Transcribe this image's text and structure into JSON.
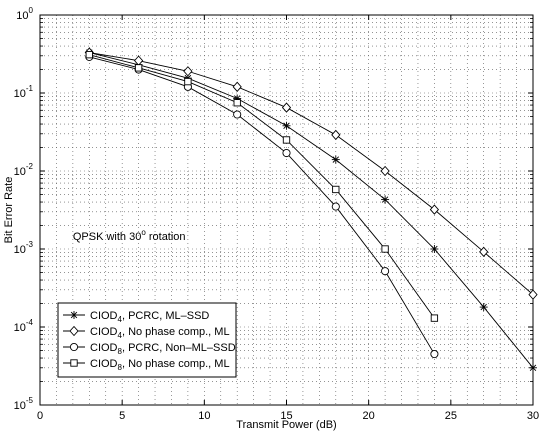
{
  "chart_data": {
    "type": "line",
    "xlabel": "Transmit Power (dB)",
    "ylabel": "Bit Error Rate",
    "xlim": [
      0,
      30
    ],
    "ylim": [
      1e-05,
      1
    ],
    "yscale": "log",
    "grid": true,
    "legend_placement": "bottom-left",
    "annotation": {
      "text": "QPSK with 30",
      "sup": "o",
      "rest": " rotation"
    },
    "x_ticks": [
      "0",
      "5",
      "10",
      "15",
      "20",
      "25",
      "30"
    ],
    "y_ticks": [
      {
        "base": "10",
        "exp": "0"
      },
      {
        "base": "10",
        "exp": "-1"
      },
      {
        "base": "10",
        "exp": "-2"
      },
      {
        "base": "10",
        "exp": "-3"
      },
      {
        "base": "10",
        "exp": "-4"
      },
      {
        "base": "10",
        "exp": "-5"
      }
    ],
    "series": [
      {
        "name": "CIOD4, PCRC, ML-SSD",
        "label_main": "CIOD",
        "label_sub": "4",
        "label_rest": ", PCRC, ML–SSD",
        "marker": "star",
        "x": [
          3,
          6,
          9,
          12,
          15,
          18,
          21,
          24,
          27,
          30
        ],
        "y": [
          0.33,
          0.23,
          0.155,
          0.085,
          0.038,
          0.014,
          0.0043,
          0.001,
          0.00018,
          3e-05
        ]
      },
      {
        "name": "CIOD4, No phase comp., ML",
        "label_main": "CIOD",
        "label_sub": "4",
        "label_rest": ", No phase comp., ML",
        "marker": "diamond",
        "x": [
          3,
          6,
          9,
          12,
          15,
          18,
          21,
          24,
          27,
          30
        ],
        "y": [
          0.33,
          0.26,
          0.19,
          0.12,
          0.065,
          0.029,
          0.01,
          0.0032,
          0.00092,
          0.00026
        ]
      },
      {
        "name": "CIOD8, PCRC, Non-ML-SSD",
        "label_main": "CIOD",
        "label_sub": "8",
        "label_rest": ", PCRC, Non–ML–SSD",
        "marker": "circle",
        "x": [
          3,
          6,
          9,
          12,
          15,
          18,
          21,
          24
        ],
        "y": [
          0.29,
          0.2,
          0.12,
          0.053,
          0.017,
          0.0035,
          0.00052,
          4.5e-05
        ]
      },
      {
        "name": "CIOD8, No phase comp., ML",
        "label_main": "CIOD",
        "label_sub": "8",
        "label_rest": ", No phase comp., ML",
        "marker": "square",
        "x": [
          3,
          6,
          9,
          12,
          15,
          18,
          21,
          24
        ],
        "y": [
          0.31,
          0.21,
          0.14,
          0.075,
          0.025,
          0.0058,
          0.001,
          0.00013
        ]
      }
    ]
  }
}
